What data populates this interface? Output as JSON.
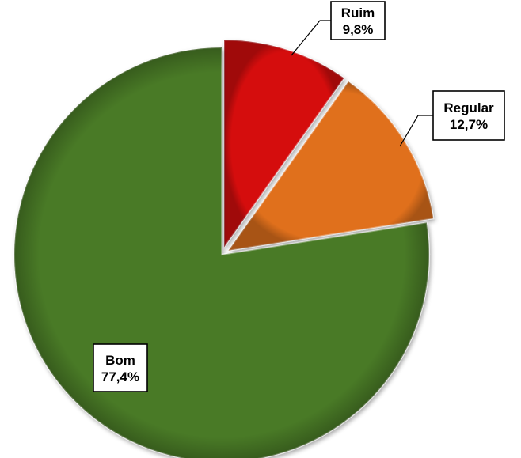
{
  "chart_data": {
    "type": "pie",
    "title": "",
    "slices": [
      {
        "label": "Ruim",
        "value": 9.8,
        "display": "9,8%",
        "color": "#d50c10"
      },
      {
        "label": "Regular",
        "value": 12.7,
        "display": "12,7%",
        "color": "#e0701e"
      },
      {
        "label": "Bom",
        "value": 77.4,
        "display": "77,4%",
        "color": "#4a7a26"
      }
    ],
    "start": "12 o'clock",
    "direction": "clockwise",
    "legend": "none",
    "data_labels": "category and percentage"
  }
}
